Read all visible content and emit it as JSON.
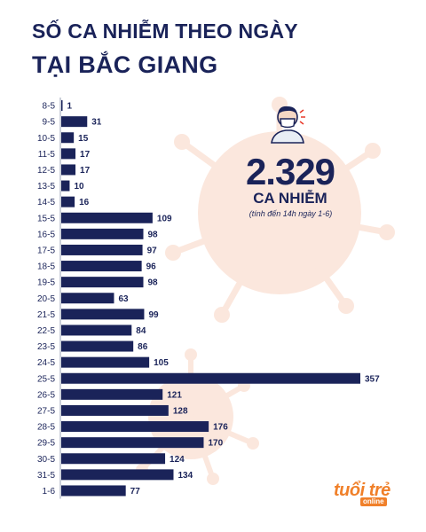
{
  "header": {
    "line1": "SỐ CA NHIỄM THEO NGÀY",
    "line2": "TẠI BẮC GIANG"
  },
  "summary": {
    "total": "2.329",
    "label": "CA NHIỄM",
    "note": "(tính đến 14h ngày 1-6)",
    "icon": "masked-person-icon"
  },
  "logo": {
    "main": "tuổi trẻ",
    "sub": "online"
  },
  "colors": {
    "bar": "#1a2359",
    "virus": "#fbe7dd",
    "accent": "#f0802a"
  },
  "chart_data": {
    "type": "bar",
    "orientation": "horizontal",
    "categories": [
      "8-5",
      "9-5",
      "10-5",
      "11-5",
      "12-5",
      "13-5",
      "14-5",
      "15-5",
      "16-5",
      "17-5",
      "18-5",
      "19-5",
      "20-5",
      "21-5",
      "22-5",
      "23-5",
      "24-5",
      "25-5",
      "26-5",
      "27-5",
      "28-5",
      "29-5",
      "30-5",
      "31-5",
      "1-6"
    ],
    "values": [
      1,
      31,
      15,
      17,
      17,
      10,
      16,
      109,
      98,
      97,
      96,
      98,
      63,
      99,
      84,
      86,
      105,
      357,
      121,
      128,
      176,
      170,
      124,
      134,
      77
    ],
    "title": "SỐ CA NHIỄM THEO NGÀY TẠI BẮC GIANG",
    "xlim": [
      0,
      357
    ],
    "grid": false,
    "legend": "none"
  }
}
